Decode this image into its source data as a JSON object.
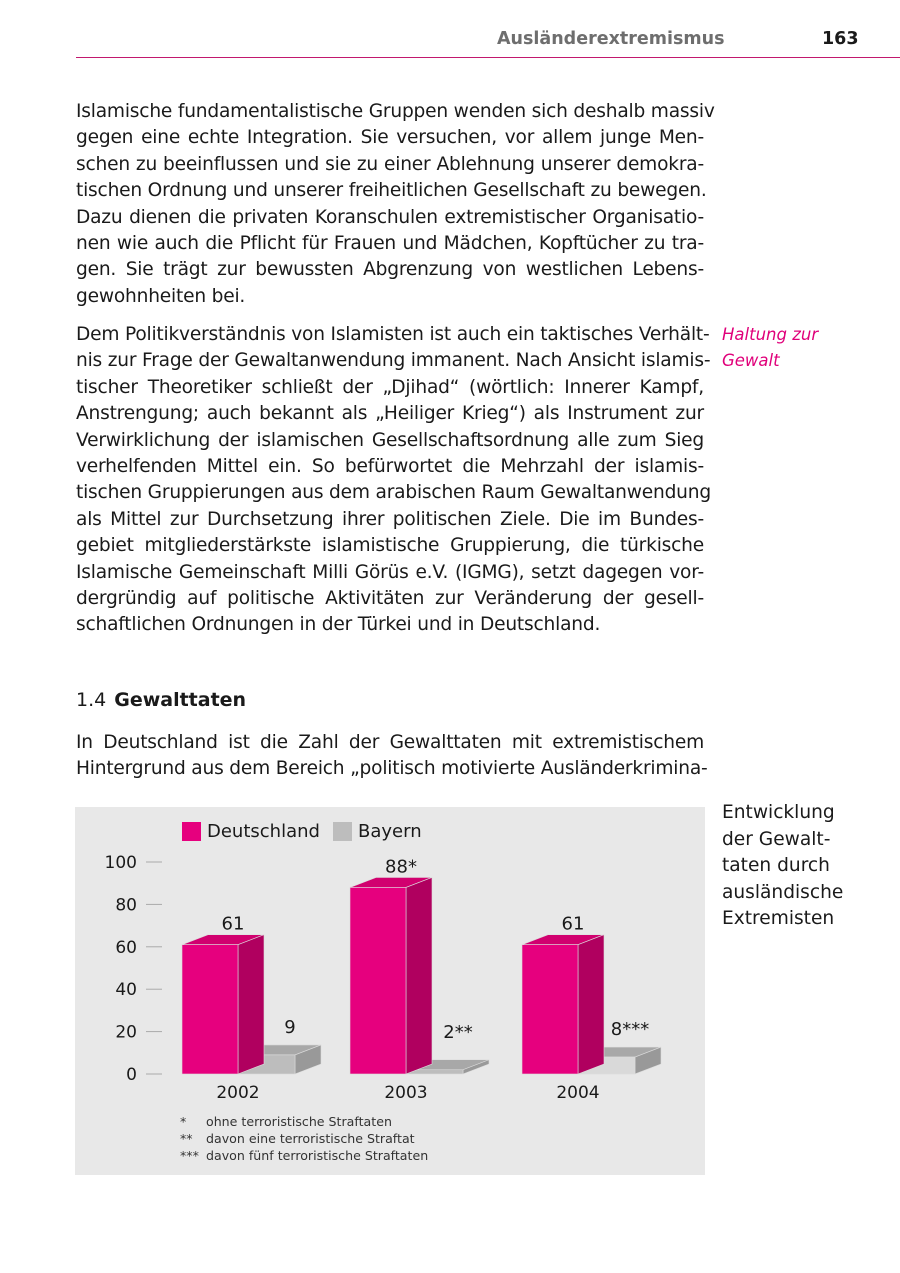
{
  "header": {
    "title": "Ausländerextremismus",
    "page_number": "163"
  },
  "paragraph1": [
    "Islamische fundamentalistische Gruppen wenden sich deshalb massiv",
    "gegen eine echte Integration. Sie versuchen, vor allem junge Men-",
    "schen zu beeinflussen und sie zu einer Ablehnung unserer demokra-",
    "tischen Ordnung und unserer freiheitlichen Gesellschaft zu bewegen.",
    "Dazu dienen die privaten Koranschulen extremistischer Organisatio-",
    "nen wie auch die Pflicht für Frauen und Mädchen, Kopftücher zu tra-",
    "gen. Sie trägt zur bewussten Abgrenzung von westlichen Lebens-",
    "gewohnheiten bei."
  ],
  "paragraph2": [
    "Dem Politikverständnis von Islamisten ist auch ein taktisches Verhält-",
    "nis zur Frage der Gewaltanwendung immanent. Nach Ansicht islamis-",
    "tischer Theoretiker schließt der „Djihad“ (wörtlich: Innerer Kampf,",
    "Anstrengung; auch bekannt als „Heiliger Krieg“) als Instrument zur",
    "Verwirklichung der islamischen Gesellschaftsordnung alle zum Sieg",
    "verhelfenden Mittel ein. So befürwortet die Mehrzahl der islamis-",
    "tischen Gruppierungen aus dem arabischen Raum Gewaltanwendung",
    "als Mittel zur Durchsetzung ihrer politischen Ziele. Die im Bundes-",
    "gebiet mitgliederstärkste islamistische Gruppierung, die türkische",
    "Islamische Gemeinschaft Milli Görüs e.V. (IGMG), setzt dagegen vor-",
    "dergründig auf politische Aktivitäten zur Veränderung der gesell-",
    "schaftlichen Ordnungen in der Türkei und in Deutschland."
  ],
  "margin_note": [
    "Haltung zur",
    "Gewalt"
  ],
  "section": {
    "number": "1.4",
    "title": "Gewalttaten"
  },
  "paragraph3": [
    "In Deutschland ist die Zahl der Gewalttaten mit extremistischem",
    "Hintergrund aus dem Bereich „politisch motivierte Ausländerkrimina-"
  ],
  "chart_caption": [
    "Entwicklung",
    "der Gewalt-",
    "taten durch",
    "ausländische",
    "Extremisten"
  ],
  "colors": {
    "accent": "#e6007e",
    "accent_side": "#b0005f",
    "accent_top": "#d1006f",
    "gray": "#bdbdbd",
    "gray_side": "#999999",
    "gray_top": "#a8a8a8",
    "chart_bg": "#e8e8e8"
  },
  "chart_data": {
    "type": "bar",
    "categories": [
      "2002",
      "2003",
      "2004"
    ],
    "series": [
      {
        "name": "Deutschland",
        "values": [
          61,
          88,
          61
        ],
        "labels": [
          "61",
          "88*",
          "61"
        ]
      },
      {
        "name": "Bayern",
        "values": [
          9,
          2,
          8
        ],
        "labels": [
          "9",
          "2**",
          "8***"
        ]
      }
    ],
    "yticks": [
      "0",
      "20",
      "40",
      "60",
      "80",
      "100"
    ],
    "ylim": [
      0,
      100
    ],
    "legend": "top-left",
    "footnotes": [
      {
        "mark": "*",
        "text": "ohne terroristische Straftaten"
      },
      {
        "mark": "**",
        "text": "davon eine terroristische Straftat"
      },
      {
        "mark": "***",
        "text": "davon fünf terroristische Straftaten"
      }
    ]
  }
}
